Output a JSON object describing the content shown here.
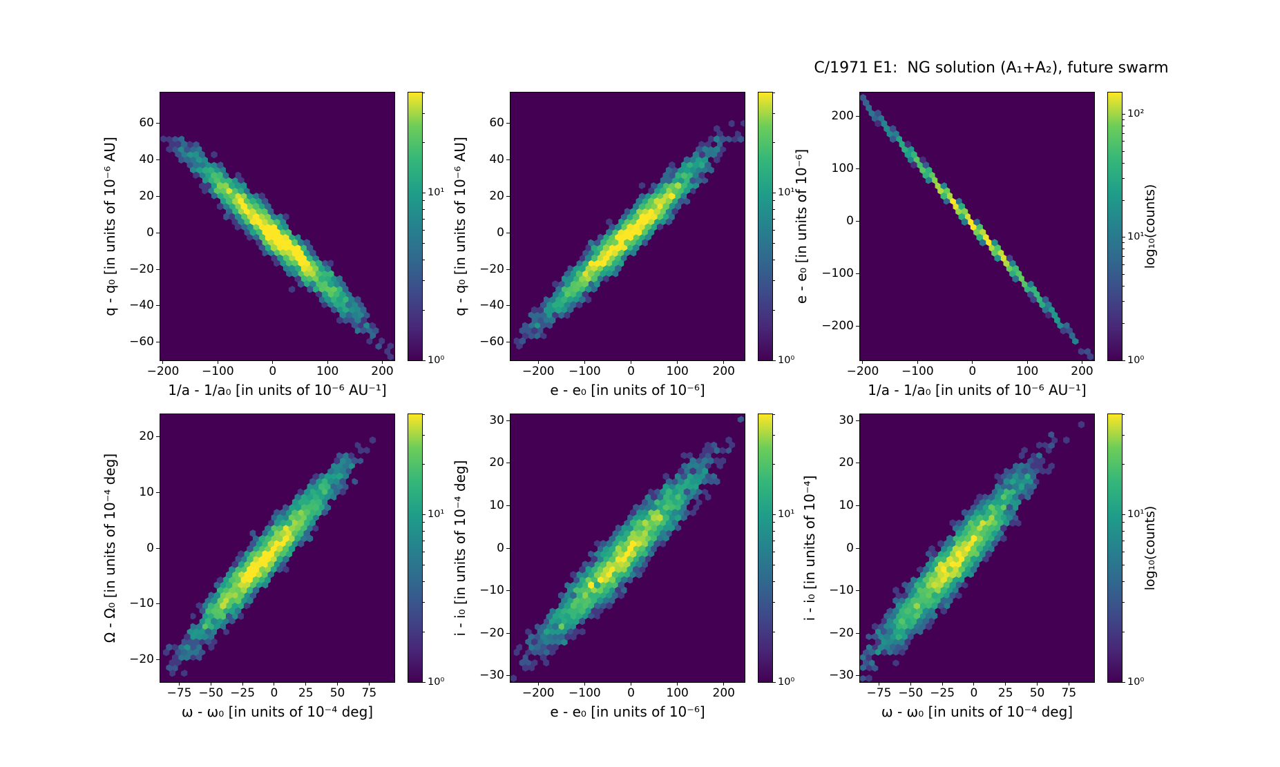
{
  "figure": {
    "title": "C/1971 E1:  NG solution (A₁+A₂), future swarm",
    "background_color": "#ffffff",
    "text_color": "#000000"
  },
  "colormap": {
    "name": "viridis",
    "zero_bin_color": "#440154",
    "stops": [
      [
        0.0,
        "#440154"
      ],
      [
        0.125,
        "#482878"
      ],
      [
        0.25,
        "#3e4a89"
      ],
      [
        0.375,
        "#31688e"
      ],
      [
        0.5,
        "#26828e"
      ],
      [
        0.625,
        "#1f9e89"
      ],
      [
        0.75,
        "#35b779"
      ],
      [
        0.875,
        "#6dcd59"
      ],
      [
        1.0,
        "#fde725"
      ]
    ]
  },
  "chart_data": [
    {
      "id": "top-left",
      "type": "hexbin",
      "row": 0,
      "col": 0,
      "xlabel": "1/a - 1/a₀ [in units of 10⁻⁶ AU⁻¹]",
      "ylabel": "q - q₀ [in units of 10⁻⁶ AU]",
      "xlim": [
        -205,
        222
      ],
      "ylim": [
        -70,
        77
      ],
      "xticks": [
        -200,
        -100,
        0,
        100,
        200
      ],
      "yticks": [
        -60,
        -40,
        -20,
        0,
        20,
        40,
        60
      ],
      "correlation": "negative",
      "distribution": {
        "n_points": 4200,
        "mean_x": 5,
        "mean_y": -2,
        "sigma_x": 75,
        "sigma_y": 22,
        "rho": -0.97,
        "seed": 11
      },
      "vmax_counts": 40,
      "colorbar": {
        "scale": "log",
        "major_ticks": [
          1,
          10
        ],
        "tick_labels": [
          "10⁰",
          "10¹"
        ],
        "label": ""
      }
    },
    {
      "id": "top-middle",
      "type": "hexbin",
      "row": 0,
      "col": 1,
      "xlabel": "e - e₀ [in units of 10⁻⁶]",
      "ylabel": "q - q₀ [in units of 10⁻⁶ AU]",
      "xlim": [
        -260,
        245
      ],
      "ylim": [
        -70,
        77
      ],
      "xticks": [
        -200,
        -100,
        0,
        100,
        200
      ],
      "yticks": [
        -60,
        -40,
        -20,
        0,
        20,
        40,
        60
      ],
      "correlation": "positive",
      "distribution": {
        "n_points": 4200,
        "mean_x": -10,
        "mean_y": -2,
        "sigma_x": 88,
        "sigma_y": 22,
        "rho": 0.97,
        "seed": 22
      },
      "vmax_counts": 40,
      "colorbar": {
        "scale": "log",
        "major_ticks": [
          1,
          10
        ],
        "tick_labels": [
          "10⁰",
          "10¹"
        ],
        "label": ""
      }
    },
    {
      "id": "top-right",
      "type": "hexbin",
      "row": 0,
      "col": 2,
      "xlabel": "1/a - 1/a₀ [in units of 10⁻⁶ AU⁻¹]",
      "ylabel": "e - e₀ [in units of 10⁻⁶]",
      "xlim": [
        -205,
        222
      ],
      "ylim": [
        -265,
        245
      ],
      "xticks": [
        -200,
        -100,
        0,
        100,
        200
      ],
      "yticks": [
        -200,
        -100,
        0,
        100,
        200
      ],
      "correlation": "negative-tight-line",
      "distribution": {
        "n_points": 4200,
        "mean_x": 0,
        "mean_y": -5,
        "sigma_x": 73,
        "sigma_y": 86,
        "rho": -0.9993,
        "seed": 33
      },
      "vmax_counts": 150,
      "colorbar": {
        "scale": "log",
        "major_ticks": [
          1,
          10,
          100
        ],
        "tick_labels": [
          "10⁰",
          "10¹",
          "10²"
        ],
        "label": "log₁₀(counts)"
      }
    },
    {
      "id": "bottom-left",
      "type": "hexbin",
      "row": 1,
      "col": 0,
      "xlabel": "ω - ω₀ [in units of 10⁻⁴ deg]",
      "ylabel": "Ω - Ω₀ [in units of 10⁻⁴ deg]",
      "xlim": [
        -90,
        95
      ],
      "ylim": [
        -24,
        24
      ],
      "xticks": [
        -75,
        -50,
        -25,
        0,
        25,
        50,
        75
      ],
      "yticks": [
        -20,
        -10,
        0,
        10,
        20
      ],
      "correlation": "positive",
      "distribution": {
        "n_points": 4200,
        "mean_x": -8,
        "mean_y": -2,
        "sigma_x": 30,
        "sigma_y": 7.8,
        "rho": 0.96,
        "seed": 44
      },
      "vmax_counts": 40,
      "colorbar": {
        "scale": "log",
        "major_ticks": [
          1,
          10
        ],
        "tick_labels": [
          "10⁰",
          "10¹"
        ],
        "label": ""
      }
    },
    {
      "id": "bottom-middle",
      "type": "hexbin",
      "row": 1,
      "col": 1,
      "xlabel": "e - e₀ [in units of 10⁻⁶]",
      "ylabel": "i - i₀ [in units of 10⁻⁴ deg]",
      "xlim": [
        -260,
        245
      ],
      "ylim": [
        -31.5,
        31.5
      ],
      "xticks": [
        -200,
        -100,
        0,
        100,
        200
      ],
      "yticks": [
        -30,
        -20,
        -10,
        0,
        10,
        20,
        30
      ],
      "correlation": "positive",
      "distribution": {
        "n_points": 4200,
        "mean_x": -20,
        "mean_y": -2,
        "sigma_x": 88,
        "sigma_y": 10.5,
        "rho": 0.95,
        "seed": 55
      },
      "vmax_counts": 40,
      "colorbar": {
        "scale": "log",
        "major_ticks": [
          1,
          10
        ],
        "tick_labels": [
          "10⁰",
          "10¹"
        ],
        "label": ""
      }
    },
    {
      "id": "bottom-right",
      "type": "hexbin",
      "row": 1,
      "col": 2,
      "xlabel": "ω - ω₀ [in units of 10⁻⁴ deg]",
      "ylabel": "i - i₀ [in units of 10⁻⁴]",
      "xlim": [
        -90,
        95
      ],
      "ylim": [
        -31.5,
        31.5
      ],
      "xticks": [
        -75,
        -50,
        -25,
        0,
        25,
        50,
        75
      ],
      "yticks": [
        -30,
        -20,
        -10,
        0,
        10,
        20,
        30
      ],
      "correlation": "positive",
      "distribution": {
        "n_points": 4200,
        "mean_x": -15,
        "mean_y": -3,
        "sigma_x": 30,
        "sigma_y": 10.5,
        "rho": 0.95,
        "seed": 66
      },
      "vmax_counts": 40,
      "colorbar": {
        "scale": "log",
        "major_ticks": [
          1,
          10
        ],
        "tick_labels": [
          "10⁰",
          "10¹"
        ],
        "label": "log₁₀(counts)"
      }
    }
  ]
}
